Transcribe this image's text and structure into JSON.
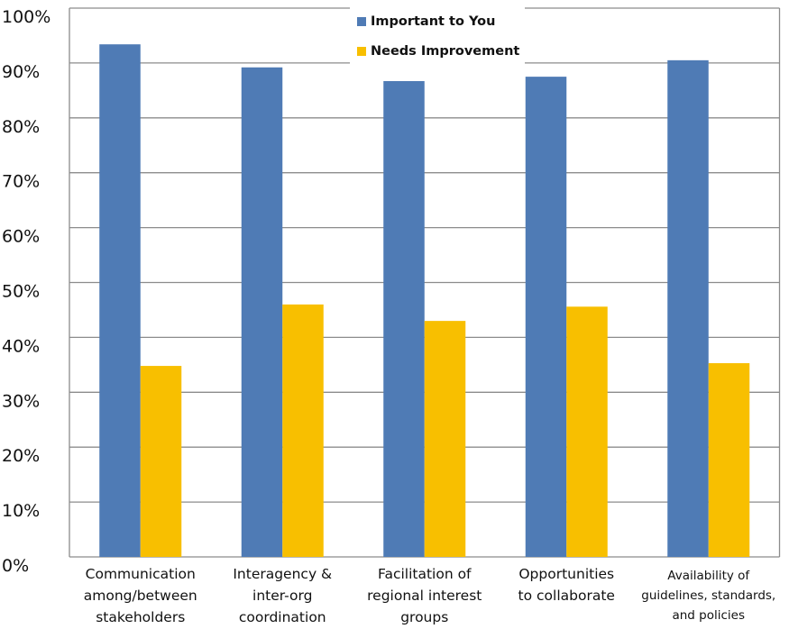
{
  "chart_data": {
    "type": "bar",
    "title": "",
    "xlabel": "",
    "ylabel": "",
    "ylim": [
      0,
      100
    ],
    "yticks": [
      "0%",
      "10%",
      "20%",
      "30%",
      "40%",
      "50%",
      "60%",
      "70%",
      "80%",
      "90%",
      "100%"
    ],
    "grid": true,
    "legend_placement": "top-center",
    "categories": [
      "Communication among/between stakeholders",
      "Interagency & inter-org coordination",
      "Facilitation of regional interest groups",
      "Opportunities to collaborate",
      "Availability of guidelines, standards, and policies"
    ],
    "category_lines": [
      [
        "Communication",
        "among/between",
        "stakeholders"
      ],
      [
        "Interagency &",
        "inter-org",
        "coordination"
      ],
      [
        "Facilitation of",
        "regional interest",
        "groups"
      ],
      [
        "Opportunities",
        "to collaborate"
      ],
      [
        "Availability of",
        "guidelines, standards,",
        "and policies"
      ]
    ],
    "series": [
      {
        "name": "Important to You",
        "color": "#4f7bb5",
        "values": [
          93.4,
          89.2,
          86.7,
          87.5,
          90.5
        ]
      },
      {
        "name": "Needs Improvement",
        "color": "#f8bf00",
        "values": [
          34.8,
          46.0,
          43.0,
          45.6,
          35.3
        ]
      }
    ]
  }
}
